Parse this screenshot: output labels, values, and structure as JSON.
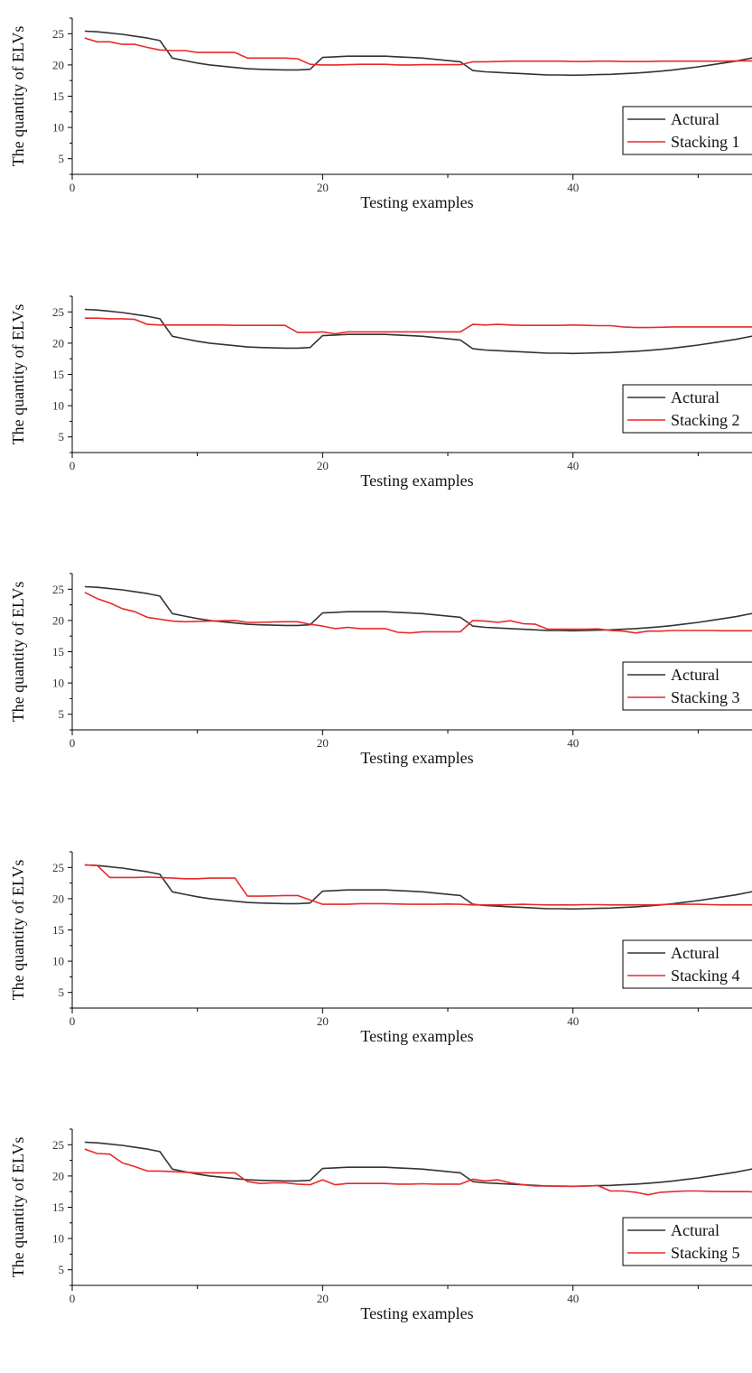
{
  "chart_data": [
    {
      "type": "line",
      "xlabel": "Testing examples",
      "ylabel": "The quantity of ELVs",
      "xlim": [
        0,
        54.3
      ],
      "ylim": [
        2.5,
        27.5
      ],
      "xticks": [
        0,
        20,
        40
      ],
      "yticks": [
        5,
        10,
        15,
        20,
        25
      ],
      "legend": "bottom-right",
      "x": [
        1,
        2,
        3,
        4,
        5,
        6,
        7,
        8,
        9,
        10,
        11,
        12,
        13,
        14,
        15,
        16,
        17,
        18,
        19,
        20,
        21,
        22,
        23,
        24,
        25,
        26,
        27,
        28,
        29,
        30,
        31,
        32,
        33,
        34,
        35,
        36,
        37,
        38,
        39,
        40,
        41,
        42,
        43,
        44,
        45,
        46,
        47,
        48,
        49,
        50,
        51,
        52,
        53,
        54,
        55
      ],
      "series": [
        {
          "name": "Actural",
          "color": "#333333",
          "values": [
            25.4,
            25.3,
            25.1,
            24.9,
            24.6,
            24.3,
            23.9,
            21.1,
            20.7,
            20.3,
            20.0,
            19.8,
            19.6,
            19.4,
            19.3,
            19.25,
            19.2,
            19.2,
            19.3,
            21.2,
            21.3,
            21.4,
            21.4,
            21.4,
            21.4,
            21.3,
            21.2,
            21.1,
            20.9,
            20.7,
            20.5,
            19.1,
            18.9,
            18.8,
            18.7,
            18.6,
            18.5,
            18.4,
            18.4,
            18.35,
            18.4,
            18.45,
            18.5,
            18.6,
            18.7,
            18.85,
            19.0,
            19.2,
            19.45,
            19.7,
            20.0,
            20.3,
            20.6,
            21.0,
            21.4
          ]
        },
        {
          "name": "Stacking 1",
          "color": "#e8292b",
          "values": [
            24.3,
            23.7,
            23.7,
            23.3,
            23.3,
            22.8,
            22.4,
            22.3,
            22.3,
            22.0,
            22.0,
            22.0,
            22.0,
            21.1,
            21.1,
            21.1,
            21.1,
            21.0,
            20.1,
            20.0,
            20.0,
            20.05,
            20.1,
            20.1,
            20.1,
            20.0,
            20.0,
            20.05,
            20.05,
            20.05,
            20.05,
            20.5,
            20.5,
            20.55,
            20.6,
            20.6,
            20.6,
            20.6,
            20.6,
            20.55,
            20.55,
            20.6,
            20.6,
            20.55,
            20.55,
            20.55,
            20.6,
            20.6,
            20.6,
            20.6,
            20.6,
            20.6,
            20.65,
            20.65,
            20.65
          ]
        }
      ]
    },
    {
      "type": "line",
      "xlabel": "Testing examples",
      "ylabel": "The quantity of ELVs",
      "xlim": [
        0,
        54.3
      ],
      "ylim": [
        2.5,
        27.5
      ],
      "xticks": [
        0,
        20,
        40
      ],
      "yticks": [
        5,
        10,
        15,
        20,
        25
      ],
      "legend": "bottom-right",
      "x": [
        1,
        2,
        3,
        4,
        5,
        6,
        7,
        8,
        9,
        10,
        11,
        12,
        13,
        14,
        15,
        16,
        17,
        18,
        19,
        20,
        21,
        22,
        23,
        24,
        25,
        26,
        27,
        28,
        29,
        30,
        31,
        32,
        33,
        34,
        35,
        36,
        37,
        38,
        39,
        40,
        41,
        42,
        43,
        44,
        45,
        46,
        47,
        48,
        49,
        50,
        51,
        52,
        53,
        54,
        55
      ],
      "series": [
        {
          "name": "Actural",
          "color": "#333333",
          "values": [
            25.4,
            25.3,
            25.1,
            24.9,
            24.6,
            24.3,
            23.9,
            21.1,
            20.7,
            20.3,
            20.0,
            19.8,
            19.6,
            19.4,
            19.3,
            19.25,
            19.2,
            19.2,
            19.3,
            21.2,
            21.3,
            21.4,
            21.4,
            21.4,
            21.4,
            21.3,
            21.2,
            21.1,
            20.9,
            20.7,
            20.5,
            19.1,
            18.9,
            18.8,
            18.7,
            18.6,
            18.5,
            18.4,
            18.4,
            18.35,
            18.4,
            18.45,
            18.5,
            18.6,
            18.7,
            18.85,
            19.0,
            19.2,
            19.45,
            19.7,
            20.0,
            20.3,
            20.6,
            21.0,
            21.4
          ]
        },
        {
          "name": "Stacking 2",
          "color": "#e8292b",
          "values": [
            24.0,
            24.0,
            23.9,
            23.9,
            23.8,
            23.0,
            22.9,
            22.9,
            22.9,
            22.9,
            22.9,
            22.9,
            22.85,
            22.85,
            22.85,
            22.85,
            22.85,
            21.7,
            21.7,
            21.8,
            21.5,
            21.8,
            21.8,
            21.8,
            21.8,
            21.8,
            21.8,
            21.8,
            21.8,
            21.8,
            21.8,
            23.0,
            22.9,
            23.0,
            22.9,
            22.85,
            22.85,
            22.85,
            22.85,
            22.9,
            22.85,
            22.8,
            22.8,
            22.6,
            22.5,
            22.5,
            22.55,
            22.6,
            22.6,
            22.6,
            22.6,
            22.6,
            22.6,
            22.6,
            22.6
          ]
        }
      ]
    },
    {
      "type": "line",
      "xlabel": "Testing examples",
      "ylabel": "The quantity of ELVs",
      "xlim": [
        0,
        54.3
      ],
      "ylim": [
        2.5,
        27.5
      ],
      "xticks": [
        0,
        20,
        40
      ],
      "yticks": [
        5,
        10,
        15,
        20,
        25
      ],
      "legend": "bottom-right",
      "x": [
        1,
        2,
        3,
        4,
        5,
        6,
        7,
        8,
        9,
        10,
        11,
        12,
        13,
        14,
        15,
        16,
        17,
        18,
        19,
        20,
        21,
        22,
        23,
        24,
        25,
        26,
        27,
        28,
        29,
        30,
        31,
        32,
        33,
        34,
        35,
        36,
        37,
        38,
        39,
        40,
        41,
        42,
        43,
        44,
        45,
        46,
        47,
        48,
        49,
        50,
        51,
        52,
        53,
        54,
        55
      ],
      "series": [
        {
          "name": "Actural",
          "color": "#333333",
          "values": [
            25.4,
            25.3,
            25.1,
            24.9,
            24.6,
            24.3,
            23.9,
            21.1,
            20.7,
            20.3,
            20.0,
            19.8,
            19.6,
            19.4,
            19.3,
            19.25,
            19.2,
            19.2,
            19.3,
            21.2,
            21.3,
            21.4,
            21.4,
            21.4,
            21.4,
            21.3,
            21.2,
            21.1,
            20.9,
            20.7,
            20.5,
            19.1,
            18.9,
            18.8,
            18.7,
            18.6,
            18.5,
            18.4,
            18.4,
            18.35,
            18.4,
            18.45,
            18.5,
            18.6,
            18.7,
            18.85,
            19.0,
            19.2,
            19.45,
            19.7,
            20.0,
            20.3,
            20.6,
            21.0,
            21.4
          ]
        },
        {
          "name": "Stacking 3",
          "color": "#e8292b",
          "values": [
            24.5,
            23.5,
            22.8,
            21.9,
            21.4,
            20.5,
            20.2,
            19.9,
            19.8,
            19.85,
            19.9,
            19.95,
            20.0,
            19.7,
            19.7,
            19.75,
            19.8,
            19.8,
            19.4,
            19.1,
            18.7,
            18.9,
            18.7,
            18.7,
            18.7,
            18.1,
            18.0,
            18.2,
            18.2,
            18.2,
            18.2,
            20.0,
            19.9,
            19.7,
            19.95,
            19.5,
            19.4,
            18.6,
            18.6,
            18.6,
            18.6,
            18.65,
            18.4,
            18.3,
            18.0,
            18.3,
            18.3,
            18.4,
            18.4,
            18.4,
            18.4,
            18.35,
            18.35,
            18.35,
            18.35
          ]
        }
      ]
    },
    {
      "type": "line",
      "xlabel": "Testing examples",
      "ylabel": "The quantity of ELVs",
      "xlim": [
        0,
        54.3
      ],
      "ylim": [
        2.5,
        27.5
      ],
      "xticks": [
        0,
        20,
        40
      ],
      "yticks": [
        5,
        10,
        15,
        20,
        25
      ],
      "legend": "bottom-right",
      "x": [
        1,
        2,
        3,
        4,
        5,
        6,
        7,
        8,
        9,
        10,
        11,
        12,
        13,
        14,
        15,
        16,
        17,
        18,
        19,
        20,
        21,
        22,
        23,
        24,
        25,
        26,
        27,
        28,
        29,
        30,
        31,
        32,
        33,
        34,
        35,
        36,
        37,
        38,
        39,
        40,
        41,
        42,
        43,
        44,
        45,
        46,
        47,
        48,
        49,
        50,
        51,
        52,
        53,
        54,
        55
      ],
      "series": [
        {
          "name": "Actural",
          "color": "#333333",
          "values": [
            25.4,
            25.3,
            25.1,
            24.9,
            24.6,
            24.3,
            23.9,
            21.1,
            20.7,
            20.3,
            20.0,
            19.8,
            19.6,
            19.4,
            19.3,
            19.25,
            19.2,
            19.2,
            19.3,
            21.2,
            21.3,
            21.4,
            21.4,
            21.4,
            21.4,
            21.3,
            21.2,
            21.1,
            20.9,
            20.7,
            20.5,
            19.1,
            18.9,
            18.8,
            18.7,
            18.6,
            18.5,
            18.4,
            18.4,
            18.35,
            18.4,
            18.45,
            18.5,
            18.6,
            18.7,
            18.85,
            19.0,
            19.2,
            19.45,
            19.7,
            20.0,
            20.3,
            20.6,
            21.0,
            21.4
          ]
        },
        {
          "name": "Stacking 4",
          "color": "#e8292b",
          "values": [
            25.4,
            25.3,
            23.4,
            23.4,
            23.4,
            23.45,
            23.4,
            23.3,
            23.2,
            23.2,
            23.3,
            23.3,
            23.3,
            20.4,
            20.4,
            20.45,
            20.5,
            20.5,
            19.8,
            19.1,
            19.1,
            19.1,
            19.2,
            19.2,
            19.2,
            19.15,
            19.1,
            19.1,
            19.1,
            19.15,
            19.1,
            19.0,
            19.0,
            19.0,
            19.05,
            19.1,
            19.05,
            19.0,
            19.0,
            19.0,
            19.05,
            19.05,
            19.0,
            19.0,
            19.0,
            19.0,
            19.05,
            19.1,
            19.1,
            19.1,
            19.05,
            19.0,
            19.0,
            19.0,
            19.0
          ]
        }
      ]
    },
    {
      "type": "line",
      "xlabel": "Testing examples",
      "ylabel": "The quantity of ELVs",
      "xlim": [
        0,
        54.3
      ],
      "ylim": [
        2.5,
        27.5
      ],
      "xticks": [
        0,
        20,
        40
      ],
      "yticks": [
        5,
        10,
        15,
        20,
        25
      ],
      "legend": "bottom-right",
      "x": [
        1,
        2,
        3,
        4,
        5,
        6,
        7,
        8,
        9,
        10,
        11,
        12,
        13,
        14,
        15,
        16,
        17,
        18,
        19,
        20,
        21,
        22,
        23,
        24,
        25,
        26,
        27,
        28,
        29,
        30,
        31,
        32,
        33,
        34,
        35,
        36,
        37,
        38,
        39,
        40,
        41,
        42,
        43,
        44,
        45,
        46,
        47,
        48,
        49,
        50,
        51,
        52,
        53,
        54,
        55
      ],
      "series": [
        {
          "name": "Actural",
          "color": "#333333",
          "values": [
            25.4,
            25.3,
            25.1,
            24.9,
            24.6,
            24.3,
            23.9,
            21.1,
            20.7,
            20.3,
            20.0,
            19.8,
            19.6,
            19.4,
            19.3,
            19.25,
            19.2,
            19.2,
            19.3,
            21.2,
            21.3,
            21.4,
            21.4,
            21.4,
            21.4,
            21.3,
            21.2,
            21.1,
            20.9,
            20.7,
            20.5,
            19.1,
            18.9,
            18.8,
            18.7,
            18.6,
            18.5,
            18.4,
            18.4,
            18.35,
            18.4,
            18.45,
            18.5,
            18.6,
            18.7,
            18.85,
            19.0,
            19.2,
            19.45,
            19.7,
            20.0,
            20.3,
            20.6,
            21.0,
            21.4
          ]
        },
        {
          "name": "Stacking 5",
          "color": "#e8292b",
          "values": [
            24.3,
            23.6,
            23.5,
            22.1,
            21.5,
            20.8,
            20.8,
            20.7,
            20.6,
            20.5,
            20.5,
            20.5,
            20.5,
            19.1,
            18.8,
            18.9,
            18.9,
            18.7,
            18.6,
            19.4,
            18.6,
            18.8,
            18.8,
            18.8,
            18.8,
            18.7,
            18.7,
            18.75,
            18.7,
            18.7,
            18.7,
            19.5,
            19.2,
            19.4,
            18.9,
            18.6,
            18.4,
            18.4,
            18.35,
            18.35,
            18.4,
            18.45,
            17.6,
            17.6,
            17.4,
            17.0,
            17.4,
            17.5,
            17.6,
            17.6,
            17.55,
            17.5,
            17.5,
            17.5,
            17.4
          ]
        }
      ]
    }
  ]
}
